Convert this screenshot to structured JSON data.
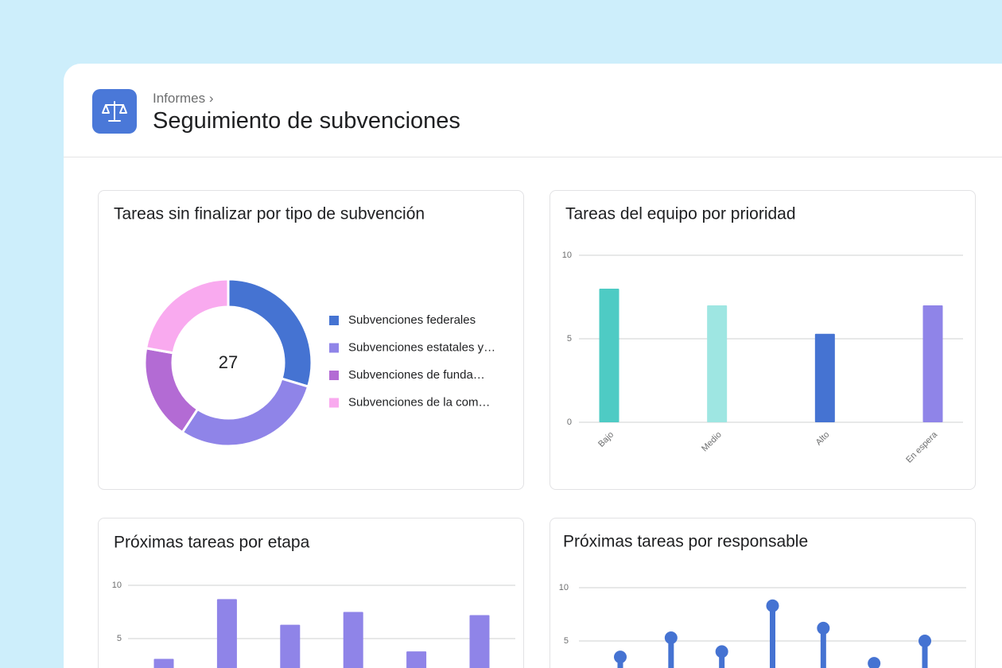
{
  "header": {
    "breadcrumb": "Informes",
    "title": "Seguimiento de subvenciones"
  },
  "chart_data": [
    {
      "type": "donut",
      "title": "Tareas sin finalizar por tipo de subvención",
      "total": 27,
      "categories": [
        "Subvenciones federales",
        "Subvenciones estatales y…",
        "Subvenciones de funda…",
        "Subvenciones de la com…"
      ],
      "values": [
        8,
        8,
        5,
        6
      ],
      "colors": [
        "#4573d2",
        "#8f84e8",
        "#b36bd4",
        "#f9aaef"
      ]
    },
    {
      "type": "bar",
      "title": "Tareas del equipo por prioridad",
      "categories": [
        "Bajo",
        "Medio",
        "Alto",
        "En espera"
      ],
      "values": [
        8,
        7,
        5.3,
        7
      ],
      "colors": [
        "#4ecbc4",
        "#9ee6e2",
        "#4573d2",
        "#8f84e8"
      ],
      "ylim": [
        0,
        10
      ],
      "yticks": [
        0,
        5,
        10
      ],
      "grid": true
    },
    {
      "type": "bar",
      "title": "Próximas tareas por etapa",
      "categories": [
        null,
        null,
        null,
        null,
        null,
        null
      ],
      "values": [
        3.1,
        8.7,
        6.3,
        7.5,
        3.8,
        7.2
      ],
      "color": "#8f84e8",
      "ylim": [
        0,
        10
      ],
      "yticks": [
        5,
        10
      ],
      "grid": true
    },
    {
      "type": "lollipop",
      "title": "Próximas tareas por responsable",
      "categories": [
        null,
        null,
        null,
        null,
        null,
        null,
        null
      ],
      "values": [
        3.5,
        5.3,
        4,
        8.3,
        6.2,
        2.9,
        5
      ],
      "color": "#4573d2",
      "ylim": [
        0,
        10
      ],
      "yticks": [
        5,
        10
      ],
      "grid": true
    }
  ]
}
